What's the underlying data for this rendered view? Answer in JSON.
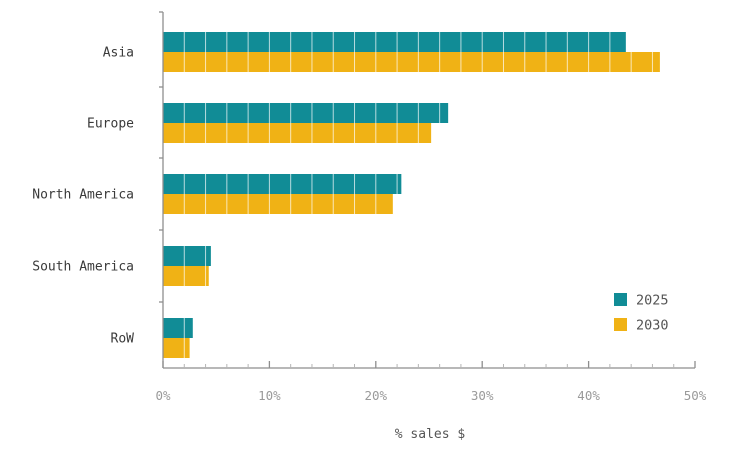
{
  "chart_data": {
    "type": "bar",
    "orientation": "horizontal",
    "categories": [
      "Asia",
      "Europe",
      "North America",
      "South America",
      "RoW"
    ],
    "series": [
      {
        "name": "2025",
        "color": "#118c96",
        "values": [
          43.5,
          26.8,
          22.4,
          4.5,
          2.8
        ]
      },
      {
        "name": "2030",
        "color": "#f0b215",
        "values": [
          46.7,
          25.2,
          21.6,
          4.3,
          2.5
        ]
      }
    ],
    "xlabel": "% sales $",
    "ylabel": "",
    "xlim": [
      0,
      50
    ],
    "x_ticks": [
      "0%",
      "10%",
      "20%",
      "30%",
      "40%",
      "50%"
    ],
    "minor_tick_step": 2,
    "bar_segment_step": 2,
    "grid": false,
    "legend_position": "bottom-right"
  }
}
